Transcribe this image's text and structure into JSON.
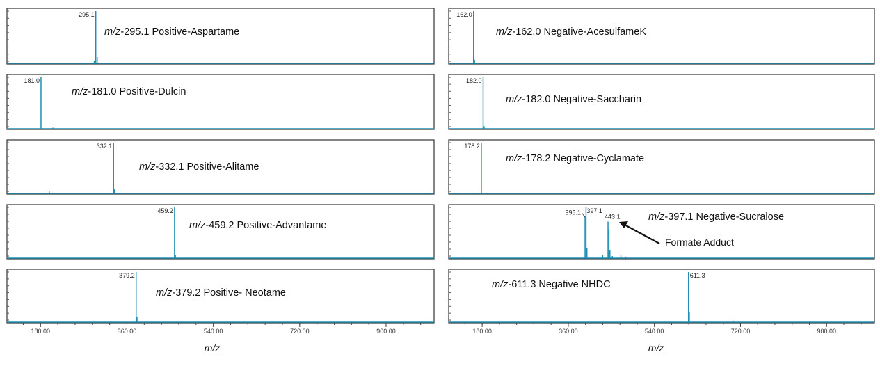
{
  "chart_data": [
    {
      "type": "line",
      "column": 0,
      "label_prefix": "m/z",
      "label_rest": "-295.1 Positive-Aspartame",
      "peaks": [
        {
          "x": 295.1,
          "y": 1.0,
          "label": "295.1"
        },
        {
          "x": 292,
          "y": 0.05
        },
        {
          "x": 298,
          "y": 0.12
        }
      ],
      "xlim": [
        110,
        1000
      ],
      "ylim": [
        0,
        1
      ]
    },
    {
      "type": "line",
      "column": 0,
      "label_prefix": "m/z",
      "label_rest": "-181.0 Positive-Dulcin",
      "peaks": [
        {
          "x": 181.0,
          "y": 1.0,
          "label": "181.0"
        },
        {
          "x": 206,
          "y": 0.02
        }
      ],
      "xlim": [
        110,
        1000
      ],
      "ylim": [
        0,
        1
      ]
    },
    {
      "type": "line",
      "column": 0,
      "label_prefix": "m/z",
      "label_rest": "-332.1 Positive-Alitame",
      "peaks": [
        {
          "x": 332.1,
          "y": 1.0,
          "label": "332.1"
        },
        {
          "x": 198,
          "y": 0.05
        },
        {
          "x": 334,
          "y": 0.08
        }
      ],
      "xlim": [
        110,
        1000
      ],
      "ylim": [
        0,
        1
      ]
    },
    {
      "type": "line",
      "column": 0,
      "label_prefix": "m/z",
      "label_rest": "-459.2 Positive-Advantame",
      "peaks": [
        {
          "x": 459.2,
          "y": 1.0,
          "label": "459.2"
        },
        {
          "x": 461,
          "y": 0.06
        }
      ],
      "xlim": [
        110,
        1000
      ],
      "ylim": [
        0,
        1
      ]
    },
    {
      "type": "line",
      "column": 0,
      "label_prefix": "m/z",
      "label_rest": "-379.2 Positive- Neotame",
      "peaks": [
        {
          "x": 379.2,
          "y": 1.0,
          "label": "379.2"
        },
        {
          "x": 381,
          "y": 0.1
        }
      ],
      "xlim": [
        110,
        1000
      ],
      "ylim": [
        0,
        1
      ]
    },
    {
      "type": "line",
      "column": 1,
      "label_prefix": "m/z",
      "label_rest": "-162.0 Negative-AcesulfameK",
      "peaks": [
        {
          "x": 162.0,
          "y": 1.0,
          "label": "162.0"
        },
        {
          "x": 164,
          "y": 0.07
        }
      ],
      "xlim": [
        110,
        1000
      ],
      "ylim": [
        0,
        1
      ]
    },
    {
      "type": "line",
      "column": 1,
      "label_prefix": "m/z",
      "label_rest": "-182.0 Negative-Saccharin",
      "peaks": [
        {
          "x": 182.0,
          "y": 1.0,
          "label": "182.0"
        },
        {
          "x": 184,
          "y": 0.05
        }
      ],
      "xlim": [
        110,
        1000
      ],
      "ylim": [
        0,
        1
      ]
    },
    {
      "type": "line",
      "column": 1,
      "label_prefix": "m/z",
      "label_rest": "-178.2 Negative-Cyclamate",
      "peaks": [
        {
          "x": 178.2,
          "y": 1.0,
          "label": "178.2"
        }
      ],
      "xlim": [
        110,
        1000
      ],
      "ylim": [
        0,
        1
      ]
    },
    {
      "type": "line",
      "column": 1,
      "label_prefix": "m/z",
      "label_rest": "-397.1 Negative-Sucralose",
      "peaks": [
        {
          "x": 395.1,
          "y": 0.83,
          "label": "395.1"
        },
        {
          "x": 397.1,
          "y": 1.0,
          "label": "397.1"
        },
        {
          "x": 399,
          "y": 0.2
        },
        {
          "x": 443.1,
          "y": 0.72,
          "label": "443.1"
        },
        {
          "x": 445,
          "y": 0.55
        },
        {
          "x": 447,
          "y": 0.15
        },
        {
          "x": 432,
          "y": 0.06
        },
        {
          "x": 452,
          "y": 0.04
        },
        {
          "x": 470,
          "y": 0.05
        },
        {
          "x": 480,
          "y": 0.03
        }
      ],
      "annotation": "Formate Adduct",
      "xlim": [
        110,
        1000
      ],
      "ylim": [
        0,
        1
      ]
    },
    {
      "type": "line",
      "column": 1,
      "label_prefix": "m/z",
      "label_rest": "-611.3 Negative NHDC",
      "peaks": [
        {
          "x": 611.3,
          "y": 1.0,
          "label": "611.3"
        },
        {
          "x": 613,
          "y": 0.2
        },
        {
          "x": 705,
          "y": 0.03
        }
      ],
      "xlim": [
        110,
        1000
      ],
      "ylim": [
        0,
        1
      ]
    }
  ],
  "x_axis": {
    "ticks": [
      180,
      360,
      540,
      720,
      900
    ],
    "tick_labels": [
      "180.00",
      "360.00",
      "540.00",
      "720.00",
      "900.00"
    ],
    "title": "m/z"
  },
  "colors": {
    "trace": "#1f8fb5",
    "frame": "#333333"
  }
}
